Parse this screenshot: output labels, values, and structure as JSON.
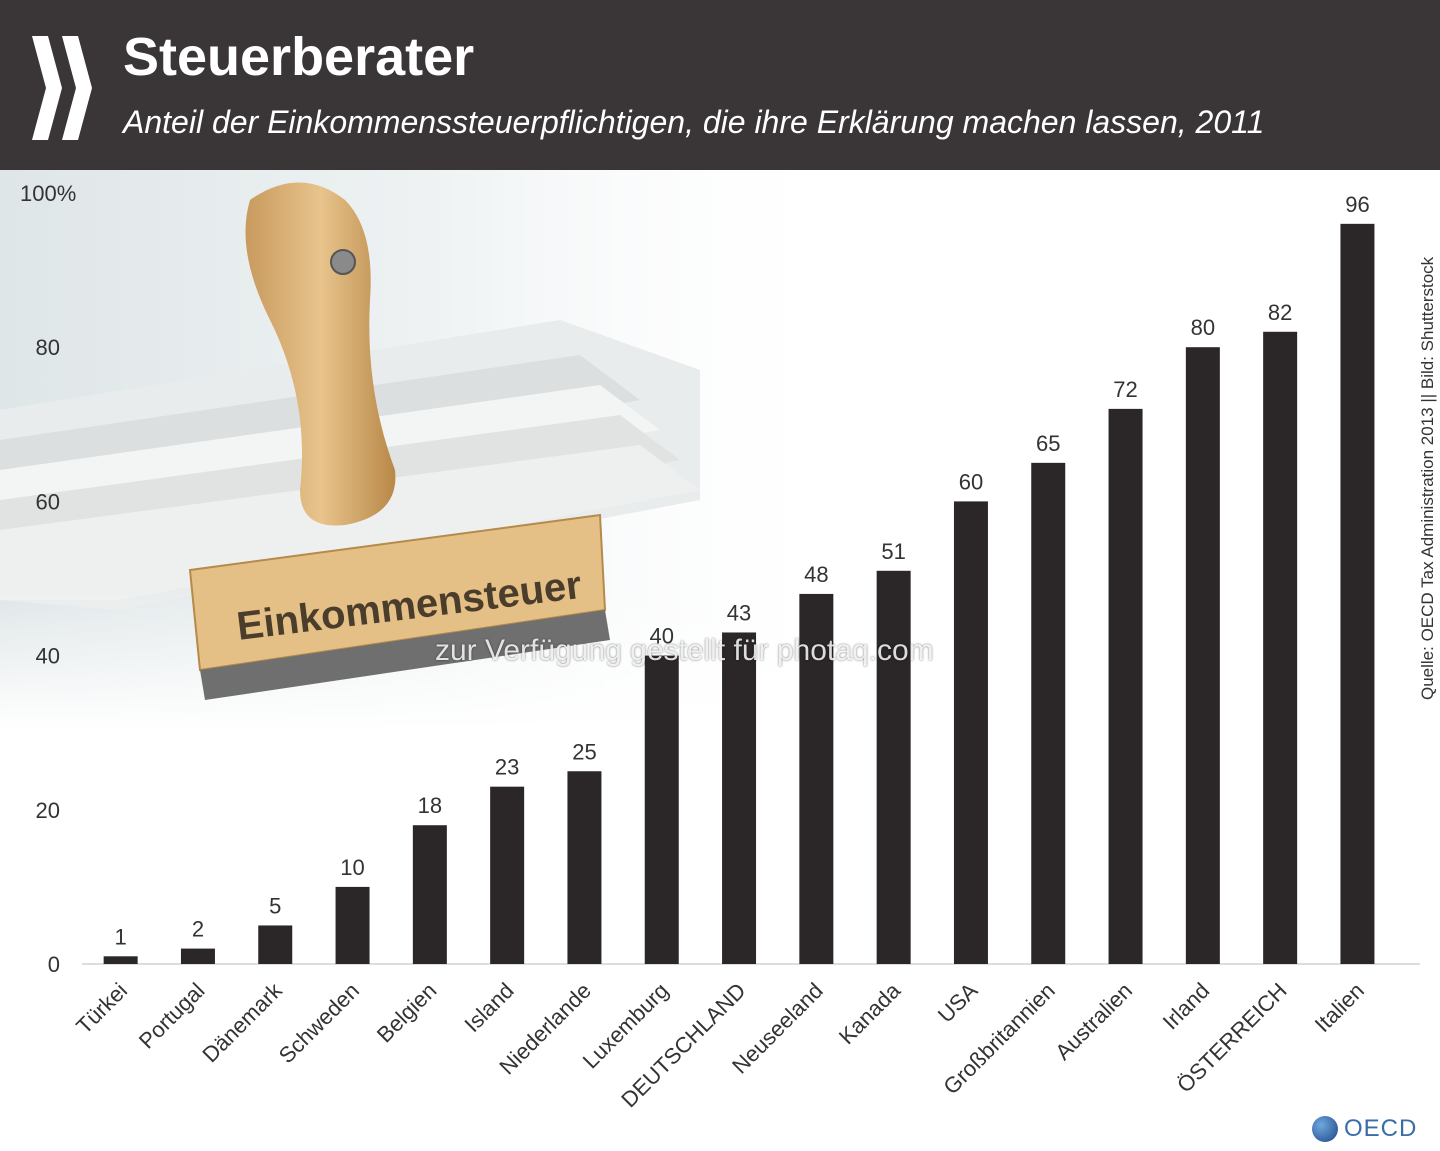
{
  "header": {
    "title": "Steuerberater",
    "subtitle": "Anteil der Einkommenssteuerpflichtigen, die ihre Erklärung machen lassen, 2011"
  },
  "source_note": "Quelle: OECD Tax Administration 2013 || Bild: Shutterstock",
  "watermark": "zur Verfügung gestellt für photaq.com",
  "image": {
    "stamp_label": "Einkommensteuer"
  },
  "brand": {
    "text": "OECD",
    "icon": "oecd-globe-icon"
  },
  "colors": {
    "header_bg": "#3a3637",
    "bar": "#2b2729",
    "brand": "#3a6ea5"
  },
  "chart_data": {
    "type": "bar",
    "title": "Steuerberater",
    "subtitle": "Anteil der Einkommenssteuerpflichtigen, die ihre Erklärung machen lassen, 2011",
    "categories": [
      "Türkei",
      "Portugal",
      "Dänemark",
      "Schweden",
      "Belgien",
      "Island",
      "Niederlande",
      "Luxemburg",
      "DEUTSCHLAND",
      "Neuseeland",
      "Kanada",
      "USA",
      "Großbritannien",
      "Australien",
      "Irland",
      "ÖSTERREICH",
      "Italien"
    ],
    "values": [
      1,
      2,
      5,
      10,
      18,
      23,
      25,
      40,
      43,
      48,
      51,
      60,
      65,
      72,
      80,
      82,
      96
    ],
    "ylim": [
      0,
      100
    ],
    "yticks": [
      0,
      20,
      40,
      60,
      80,
      100
    ],
    "ytick_labels": [
      "0",
      "20",
      "40",
      "60",
      "80",
      "100%"
    ],
    "xlabel": "",
    "ylabel": "",
    "grid": false,
    "legend": "none"
  }
}
